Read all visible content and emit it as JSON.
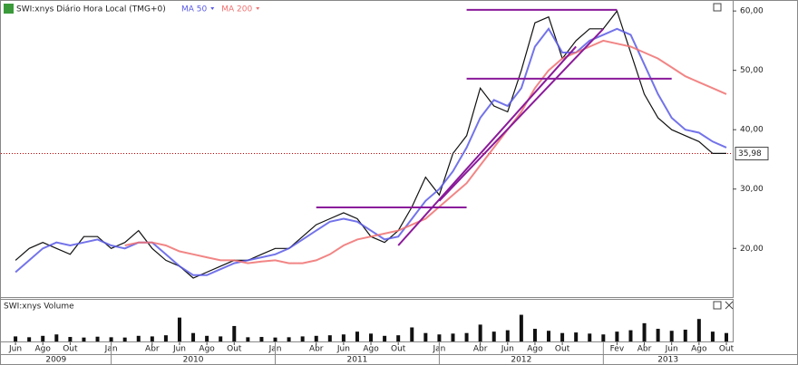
{
  "chart_data": {
    "type": "stock",
    "title": "SWI:xnys Diário Hora Local (TMG+0)",
    "volume_title": "SWI:xnys Volume",
    "x": [
      "2009-06",
      "2009-07",
      "2009-08",
      "2009-09",
      "2009-10",
      "2009-11",
      "2009-12",
      "2010-01",
      "2010-02",
      "2010-03",
      "2010-04",
      "2010-05",
      "2010-06",
      "2010-07",
      "2010-08",
      "2010-09",
      "2010-10",
      "2010-11",
      "2010-12",
      "2011-01",
      "2011-02",
      "2011-03",
      "2011-04",
      "2011-05",
      "2011-06",
      "2011-07",
      "2011-08",
      "2011-09",
      "2011-10",
      "2011-11",
      "2011-12",
      "2012-01",
      "2012-02",
      "2012-03",
      "2012-04",
      "2012-05",
      "2012-06",
      "2012-07",
      "2012-08",
      "2012-09",
      "2012-10",
      "2012-11",
      "2012-12",
      "2013-01",
      "2013-02",
      "2013-03",
      "2013-04",
      "2013-05",
      "2013-06",
      "2013-07",
      "2013-08",
      "2013-09",
      "2013-10"
    ],
    "series": [
      {
        "name": "SWI:xnys",
        "color": "#111111",
        "values": [
          18,
          20,
          21,
          20,
          19,
          22,
          22,
          20,
          21,
          23,
          20,
          18,
          17,
          15,
          16,
          17,
          18,
          18,
          19,
          20,
          20,
          22,
          24,
          25,
          26,
          25,
          22,
          21,
          23,
          27,
          32,
          29,
          36,
          39,
          47,
          44,
          43,
          50,
          58,
          59,
          52,
          55,
          57,
          57,
          60,
          53,
          46,
          42,
          40,
          39,
          38,
          36,
          36
        ]
      },
      {
        "name": "MA 50",
        "color": "#5a5ae6",
        "values": [
          16,
          18,
          20,
          21,
          20.5,
          21,
          21.5,
          20.5,
          20,
          21,
          21,
          19,
          17,
          15.5,
          15.5,
          16.5,
          17.5,
          18,
          18.5,
          19,
          20,
          21.5,
          23,
          24.5,
          25,
          24.5,
          23,
          21.5,
          22,
          25,
          28,
          30,
          33,
          37,
          42,
          45,
          44,
          47,
          54,
          57,
          53,
          53,
          55,
          56,
          57,
          56,
          51,
          46,
          42,
          40,
          39.5,
          38,
          37
        ]
      },
      {
        "name": "MA 200",
        "color": "#f07070",
        "values": [
          null,
          null,
          null,
          null,
          null,
          null,
          null,
          null,
          20.5,
          21,
          21,
          20.5,
          19.5,
          19,
          18.5,
          18,
          18,
          17.5,
          17.8,
          18,
          17.5,
          17.5,
          18,
          19,
          20.5,
          21.5,
          22,
          22.5,
          23,
          24,
          25,
          27,
          29,
          31,
          34,
          37,
          40,
          43,
          47,
          50,
          52,
          53,
          54,
          55,
          54.5,
          54,
          53,
          52,
          50.5,
          49,
          48,
          47,
          46
        ]
      }
    ],
    "volume": {
      "color": "#111111",
      "ylim": [
        0,
        100
      ],
      "values": [
        18,
        15,
        20,
        25,
        16,
        14,
        17,
        15,
        14,
        20,
        18,
        22,
        85,
        30,
        20,
        18,
        55,
        15,
        16,
        14,
        15,
        18,
        20,
        22,
        25,
        35,
        28,
        20,
        22,
        50,
        30,
        25,
        28,
        30,
        60,
        35,
        40,
        95,
        45,
        38,
        30,
        32,
        28,
        25,
        35,
        40,
        65,
        45,
        38,
        42,
        80,
        35,
        30
      ]
    },
    "trend_lines": {
      "color": "#8a1a9a",
      "lines": [
        {
          "x": [
            "2012-03",
            "2013-02"
          ],
          "values": [
            60.2,
            60.2
          ]
        },
        {
          "x": [
            "2012-03",
            "2013-06"
          ],
          "values": [
            48.6,
            48.6
          ]
        },
        {
          "x": [
            "2011-04",
            "2012-03"
          ],
          "values": [
            26.9,
            26.9
          ]
        },
        {
          "x": [
            "2011-10",
            "2012-11"
          ],
          "values": [
            20.5,
            54
          ]
        },
        {
          "x": [
            "2012-01",
            "2013-01"
          ],
          "values": [
            28,
            57
          ]
        }
      ]
    },
    "last_price": {
      "value": 35.98,
      "label": "35,98",
      "color": "#c00000"
    },
    "ylim": [
      11.8,
      61.7
    ],
    "yticks": [
      {
        "value": 20,
        "label": "20,00"
      },
      {
        "value": 30,
        "label": "30,00"
      },
      {
        "value": 40,
        "label": "40,00"
      },
      {
        "value": 50,
        "label": "50,00"
      },
      {
        "value": 60,
        "label": "60,00"
      }
    ],
    "xlim": [
      "2009-05",
      "2013-10"
    ],
    "xticks": [
      {
        "value": "2009-06",
        "label": "Jun"
      },
      {
        "value": "2009-08",
        "label": "Ago"
      },
      {
        "value": "2009-10",
        "label": "Out"
      },
      {
        "value": "2010-01",
        "label": "Jan"
      },
      {
        "value": "2010-04",
        "label": "Abr"
      },
      {
        "value": "2010-06",
        "label": "Jun"
      },
      {
        "value": "2010-08",
        "label": "Ago"
      },
      {
        "value": "2010-10",
        "label": "Out"
      },
      {
        "value": "2011-01",
        "label": "Jan"
      },
      {
        "value": "2011-04",
        "label": "Abr"
      },
      {
        "value": "2011-06",
        "label": "Jun"
      },
      {
        "value": "2011-08",
        "label": "Ago"
      },
      {
        "value": "2011-10",
        "label": "Out"
      },
      {
        "value": "2012-01",
        "label": "Jan"
      },
      {
        "value": "2012-04",
        "label": "Abr"
      },
      {
        "value": "2012-06",
        "label": "Jun"
      },
      {
        "value": "2012-08",
        "label": "Ago"
      },
      {
        "value": "2012-10",
        "label": "Out"
      },
      {
        "value": "2013-02",
        "label": "Fev"
      },
      {
        "value": "2013-04",
        "label": "Abr"
      },
      {
        "value": "2013-06",
        "label": "Jun"
      },
      {
        "value": "2013-08",
        "label": "Ago"
      },
      {
        "value": "2013-10",
        "label": "Out"
      }
    ],
    "years": [
      2009,
      2010,
      2011,
      2012,
      2013
    ]
  }
}
